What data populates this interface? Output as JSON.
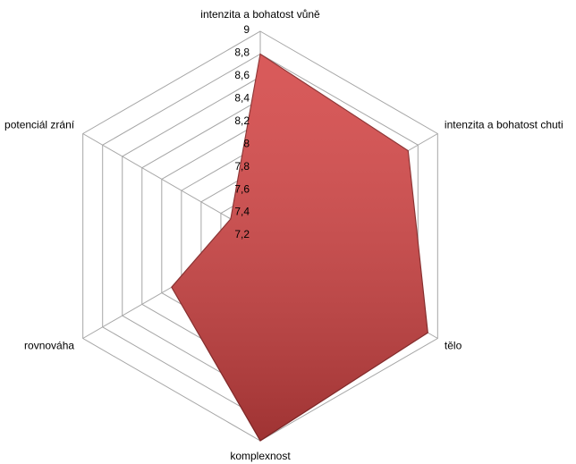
{
  "chart_data": {
    "type": "radar",
    "categories": [
      "intenzita a bohatost vůně",
      "intenzita a bohatost chuti",
      "tělo",
      "komplexnost",
      "rovnováha",
      "potenciál zrání"
    ],
    "values": [
      8.8,
      8.7,
      8.9,
      9,
      8.1,
      7.5
    ],
    "color": "#d44444",
    "ylim": [
      7.2,
      9
    ],
    "yticks": [
      {
        "value": 7.2,
        "label": "7,2"
      },
      {
        "value": 7.4,
        "label": "7,4"
      },
      {
        "value": 7.6,
        "label": "7,6"
      },
      {
        "value": 7.8,
        "label": "7,8"
      },
      8,
      {
        "value": 8.2,
        "label": "8,2"
      },
      {
        "value": 8.4,
        "label": "8,4"
      },
      {
        "value": 8.6,
        "label": "8,6"
      },
      {
        "value": 8.8,
        "label": "8,8"
      },
      9
    ],
    "grid": true
  }
}
